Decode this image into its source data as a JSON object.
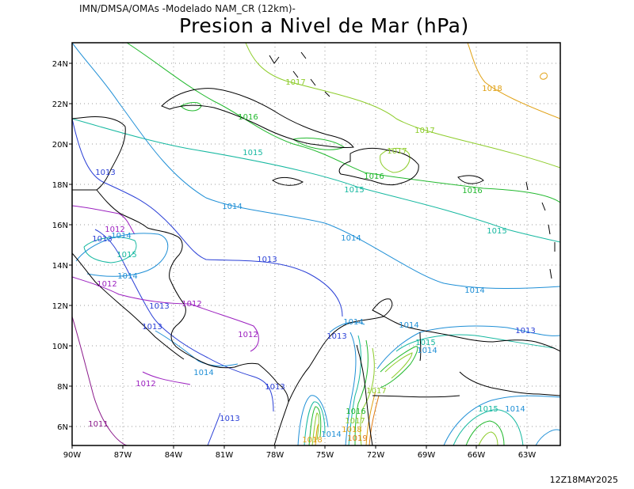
{
  "header": {
    "source": "IMN/DMSA/OMAs -Modelado NAM_CR (12km)-",
    "title": "Presion a Nivel de Mar (hPa)",
    "timestamp": "12Z18MAY2025"
  },
  "axes": {
    "y_ticks": [
      "24N",
      "22N",
      "20N",
      "18N",
      "16N",
      "14N",
      "12N",
      "10N",
      "8N",
      "6N"
    ],
    "x_ticks": [
      "90W",
      "87W",
      "84W",
      "81W",
      "78W",
      "75W",
      "72W",
      "69W",
      "66W",
      "63W"
    ]
  },
  "colors": {
    "1011": "#8b1a8b",
    "1012": "#9b1fbf",
    "1013": "#2a3fd6",
    "1014": "#1f8fd6",
    "1015": "#16b8a0",
    "1016": "#22b92e",
    "1017": "#8dcc2a",
    "1018": "#e0a012",
    "1019": "#e07a10",
    "land": "#000000",
    "grid": "#999999"
  },
  "contour_labels": [
    {
      "text": "1017",
      "level": "1017"
    },
    {
      "text": "1018",
      "level": "1018"
    },
    {
      "text": "1016",
      "level": "1016"
    },
    {
      "text": "1017",
      "level": "1017"
    },
    {
      "text": "1015",
      "level": "1015"
    },
    {
      "text": "1017",
      "level": "1017"
    },
    {
      "text": "1013",
      "level": "1013"
    },
    {
      "text": "1016",
      "level": "1016"
    },
    {
      "text": "1015",
      "level": "1015"
    },
    {
      "text": "1016",
      "level": "1016"
    },
    {
      "text": "1014",
      "level": "1014"
    },
    {
      "text": "1015",
      "level": "1015"
    },
    {
      "text": "1012",
      "level": "1012"
    },
    {
      "text": "1013",
      "level": "1013"
    },
    {
      "text": "1014",
      "level": "1014"
    },
    {
      "text": "1014",
      "level": "1014"
    },
    {
      "text": "1015",
      "level": "1015"
    },
    {
      "text": "1013",
      "level": "1013"
    },
    {
      "text": "1014",
      "level": "1014"
    },
    {
      "text": "1012",
      "level": "1012"
    },
    {
      "text": "1014",
      "level": "1014"
    },
    {
      "text": "1013",
      "level": "1013"
    },
    {
      "text": "1012",
      "level": "1012"
    },
    {
      "text": "1013",
      "level": "1013"
    },
    {
      "text": "1012",
      "level": "1012"
    },
    {
      "text": "1014",
      "level": "1014"
    },
    {
      "text": "1013",
      "level": "1013"
    },
    {
      "text": "1014",
      "level": "1014"
    },
    {
      "text": "1015",
      "level": "1015"
    },
    {
      "text": "1014",
      "level": "1014"
    },
    {
      "text": "1013",
      "level": "1013"
    },
    {
      "text": "1014",
      "level": "1014"
    },
    {
      "text": "1012",
      "level": "1012"
    },
    {
      "text": "1013",
      "level": "1013"
    },
    {
      "text": "1016",
      "level": "1016"
    },
    {
      "text": "1017",
      "level": "1017"
    },
    {
      "text": "1017",
      "level": "1017"
    },
    {
      "text": "1018",
      "level": "1018"
    },
    {
      "text": "1014",
      "level": "1014"
    },
    {
      "text": "1011",
      "level": "1011"
    },
    {
      "text": "1013",
      "level": "1013"
    },
    {
      "text": "1015",
      "level": "1015"
    },
    {
      "text": "1014",
      "level": "1014"
    },
    {
      "text": "1018",
      "level": "1018"
    },
    {
      "text": "1019",
      "level": "1019"
    }
  ]
}
